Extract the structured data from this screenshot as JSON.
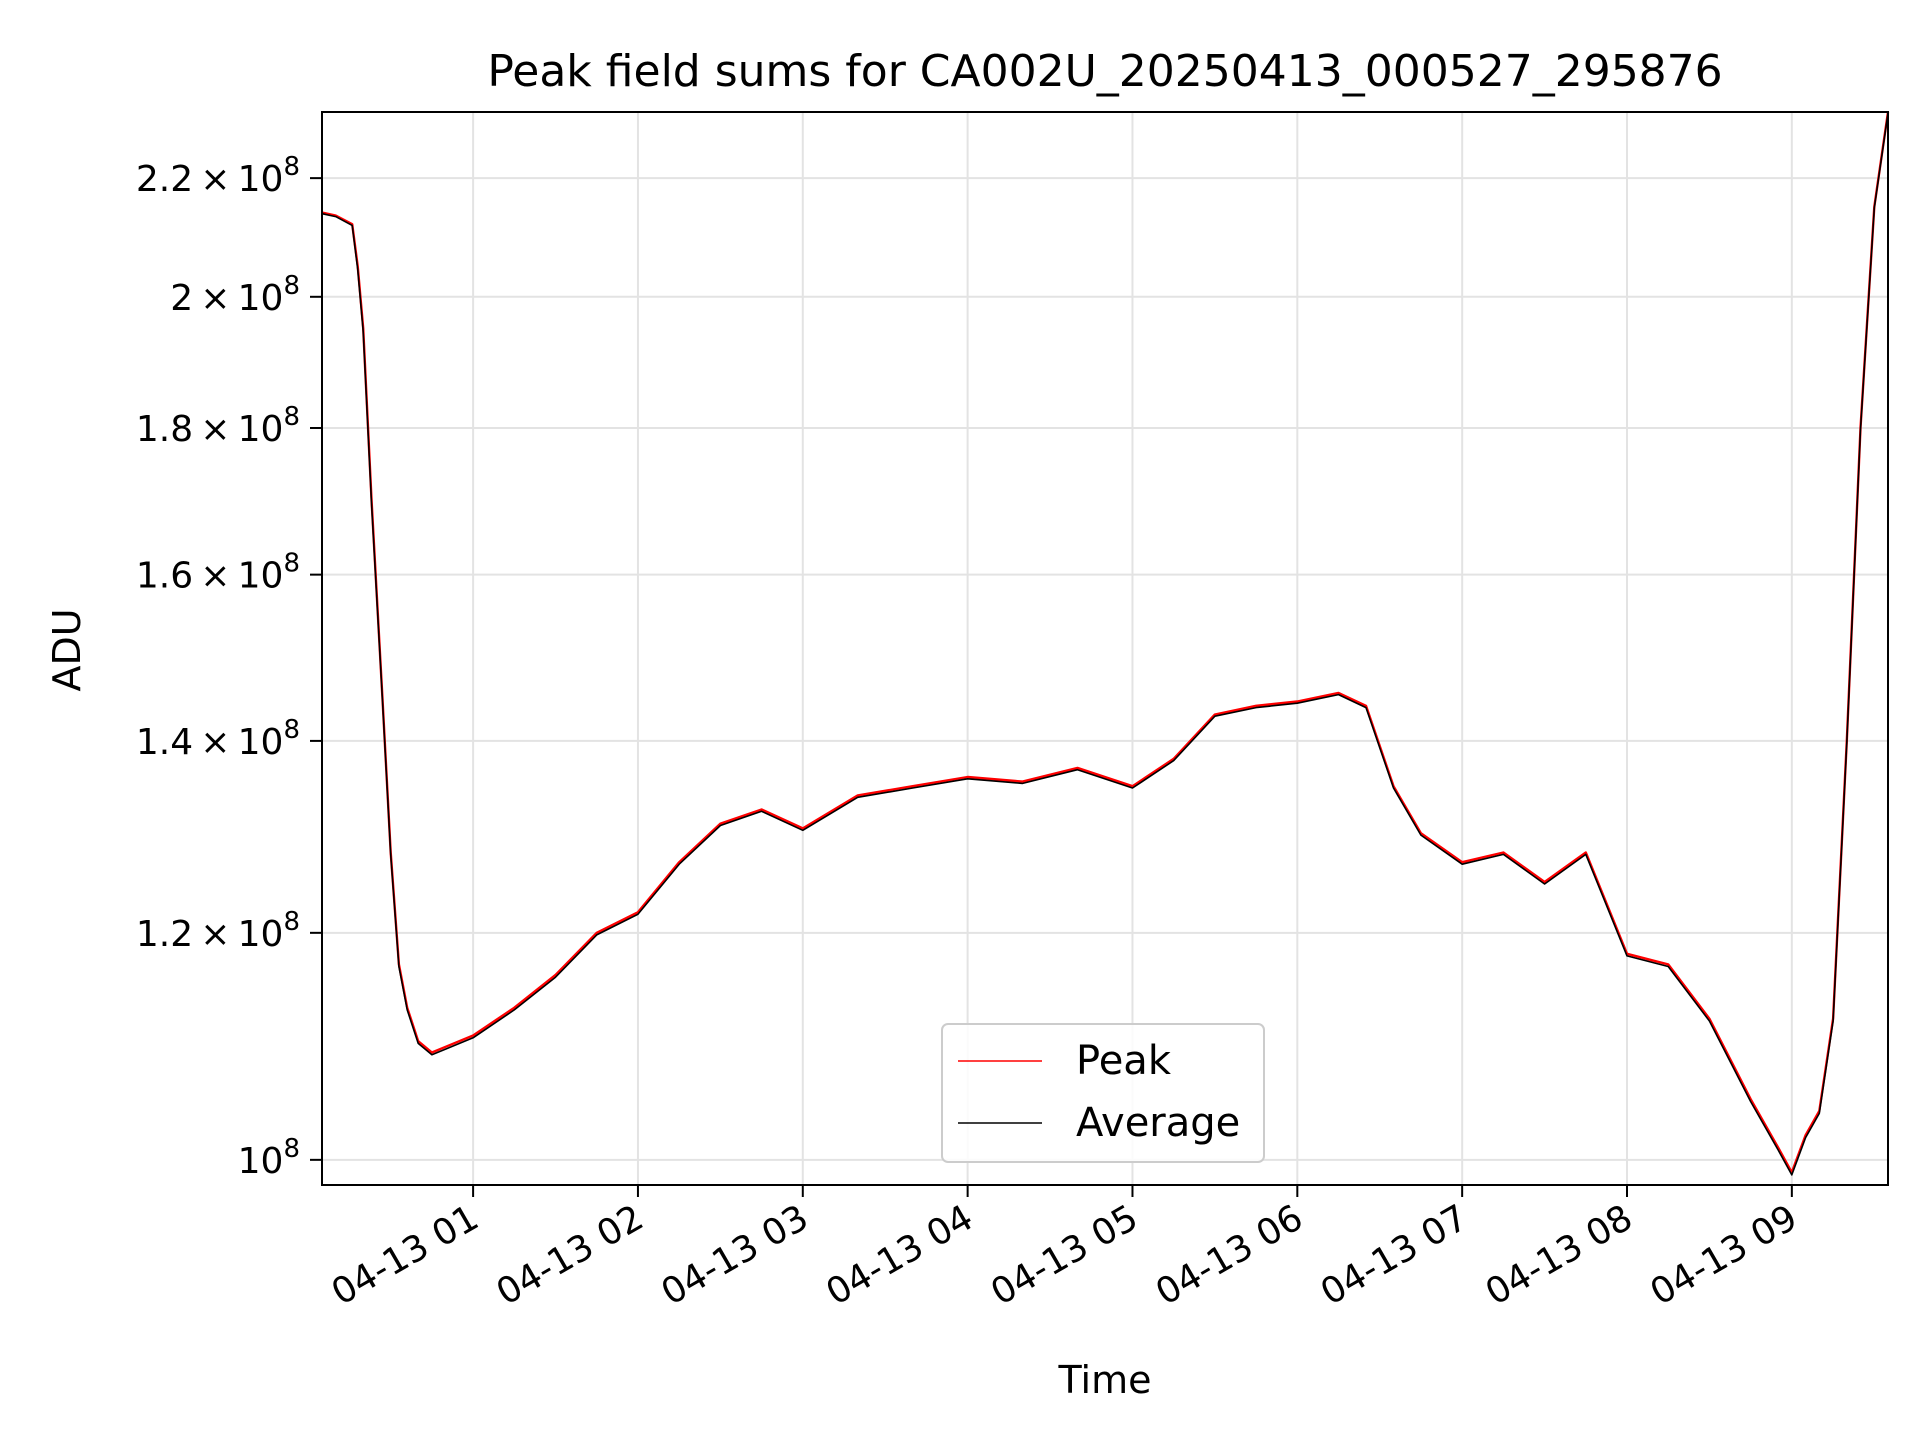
{
  "chart_data": {
    "type": "line",
    "title": "Peak field sums for CA002U_20250413_000527_295876",
    "xlabel": "Time",
    "ylabel": "ADU",
    "yscale": "log",
    "xlim": [
      "2025-04-13 00:05",
      "2025-04-13 09:35"
    ],
    "ylim": [
      98000000,
      232000000
    ],
    "grid": true,
    "legend_position": "lower center",
    "x_ticks": [
      "04-13 01",
      "04-13 02",
      "04-13 03",
      "04-13 04",
      "04-13 05",
      "04-13 06",
      "04-13 07",
      "04-13 08",
      "04-13 09"
    ],
    "y_ticks": [
      {
        "value": 100000000,
        "mantissa": "",
        "exp": "8"
      },
      {
        "value": 120000000,
        "mantissa": "1.2",
        "exp": "8"
      },
      {
        "value": 140000000,
        "mantissa": "1.4",
        "exp": "8"
      },
      {
        "value": 160000000,
        "mantissa": "1.6",
        "exp": "8"
      },
      {
        "value": 180000000,
        "mantissa": "1.8",
        "exp": "8"
      },
      {
        "value": 200000000,
        "mantissa": "2",
        "exp": "8"
      },
      {
        "value": 220000000,
        "mantissa": "2.2",
        "exp": "8"
      }
    ],
    "series": [
      {
        "name": "Peak",
        "color": "#ff0000",
        "x": [
          "2025-04-13 00:05",
          "2025-04-13 00:10",
          "2025-04-13 00:16",
          "2025-04-13 00:18",
          "2025-04-13 00:20",
          "2025-04-13 00:23",
          "2025-04-13 00:27",
          "2025-04-13 00:30",
          "2025-04-13 00:33",
          "2025-04-13 00:36",
          "2025-04-13 00:40",
          "2025-04-13 00:45",
          "2025-04-13 00:50",
          "2025-04-13 01:00",
          "2025-04-13 01:15",
          "2025-04-13 01:30",
          "2025-04-13 01:45",
          "2025-04-13 02:00",
          "2025-04-13 02:15",
          "2025-04-13 02:30",
          "2025-04-13 02:45",
          "2025-04-13 03:00",
          "2025-04-13 03:20",
          "2025-04-13 03:40",
          "2025-04-13 04:00",
          "2025-04-13 04:20",
          "2025-04-13 04:40",
          "2025-04-13 05:00",
          "2025-04-13 05:15",
          "2025-04-13 05:30",
          "2025-04-13 05:45",
          "2025-04-13 06:00",
          "2025-04-13 06:15",
          "2025-04-13 06:25",
          "2025-04-13 06:35",
          "2025-04-13 06:45",
          "2025-04-13 07:00",
          "2025-04-13 07:15",
          "2025-04-13 07:30",
          "2025-04-13 07:45",
          "2025-04-13 08:00",
          "2025-04-13 08:15",
          "2025-04-13 08:30",
          "2025-04-13 08:45",
          "2025-04-13 08:55",
          "2025-04-13 09:00",
          "2025-04-13 09:05",
          "2025-04-13 09:10",
          "2025-04-13 09:15",
          "2025-04-13 09:20",
          "2025-04-13 09:25",
          "2025-04-13 09:30",
          "2025-04-13 09:35"
        ],
        "values": [
          214000000,
          213500000,
          212000000,
          205000000,
          195000000,
          170000000,
          145000000,
          128000000,
          117000000,
          113000000,
          110000000,
          109000000,
          109500000,
          110500000,
          113000000,
          116000000,
          120000000,
          122000000,
          127000000,
          131000000,
          132500000,
          130500000,
          134000000,
          135000000,
          136000000,
          135500000,
          137000000,
          135000000,
          138000000,
          143000000,
          144000000,
          144500000,
          145500000,
          144000000,
          135000000,
          130000000,
          127000000,
          128000000,
          125000000,
          128000000,
          118000000,
          117000000,
          112000000,
          105000000,
          101000000,
          99000000,
          102000000,
          104000000,
          112000000,
          140000000,
          180000000,
          215000000,
          232000000
        ]
      },
      {
        "name": "Average",
        "color": "#000000",
        "x": [
          "2025-04-13 00:05",
          "2025-04-13 00:10",
          "2025-04-13 00:16",
          "2025-04-13 00:18",
          "2025-04-13 00:20",
          "2025-04-13 00:23",
          "2025-04-13 00:27",
          "2025-04-13 00:30",
          "2025-04-13 00:33",
          "2025-04-13 00:36",
          "2025-04-13 00:40",
          "2025-04-13 00:45",
          "2025-04-13 00:50",
          "2025-04-13 01:00",
          "2025-04-13 01:15",
          "2025-04-13 01:30",
          "2025-04-13 01:45",
          "2025-04-13 02:00",
          "2025-04-13 02:15",
          "2025-04-13 02:30",
          "2025-04-13 02:45",
          "2025-04-13 03:00",
          "2025-04-13 03:20",
          "2025-04-13 03:40",
          "2025-04-13 04:00",
          "2025-04-13 04:20",
          "2025-04-13 04:40",
          "2025-04-13 05:00",
          "2025-04-13 05:15",
          "2025-04-13 05:30",
          "2025-04-13 05:45",
          "2025-04-13 06:00",
          "2025-04-13 06:15",
          "2025-04-13 06:25",
          "2025-04-13 06:35",
          "2025-04-13 06:45",
          "2025-04-13 07:00",
          "2025-04-13 07:15",
          "2025-04-13 07:30",
          "2025-04-13 07:45",
          "2025-04-13 08:00",
          "2025-04-13 08:15",
          "2025-04-13 08:30",
          "2025-04-13 08:45",
          "2025-04-13 08:55",
          "2025-04-13 09:00",
          "2025-04-13 09:05",
          "2025-04-13 09:10",
          "2025-04-13 09:15",
          "2025-04-13 09:20",
          "2025-04-13 09:25",
          "2025-04-13 09:30",
          "2025-04-13 09:35"
        ],
        "values": [
          213800000,
          213300000,
          211800000,
          204500000,
          194500000,
          169500000,
          144800000,
          127800000,
          116800000,
          112800000,
          109800000,
          108800000,
          109300000,
          110300000,
          112800000,
          115800000,
          119800000,
          121800000,
          126800000,
          130800000,
          132300000,
          130300000,
          133800000,
          134800000,
          135800000,
          135300000,
          136800000,
          134800000,
          137800000,
          142800000,
          143800000,
          144300000,
          145300000,
          143800000,
          134800000,
          129800000,
          126800000,
          127800000,
          124800000,
          127800000,
          117800000,
          116800000,
          111800000,
          104800000,
          100800000,
          98800000,
          101800000,
          103800000,
          111800000,
          139800000,
          179800000,
          214800000,
          231800000
        ]
      }
    ]
  }
}
